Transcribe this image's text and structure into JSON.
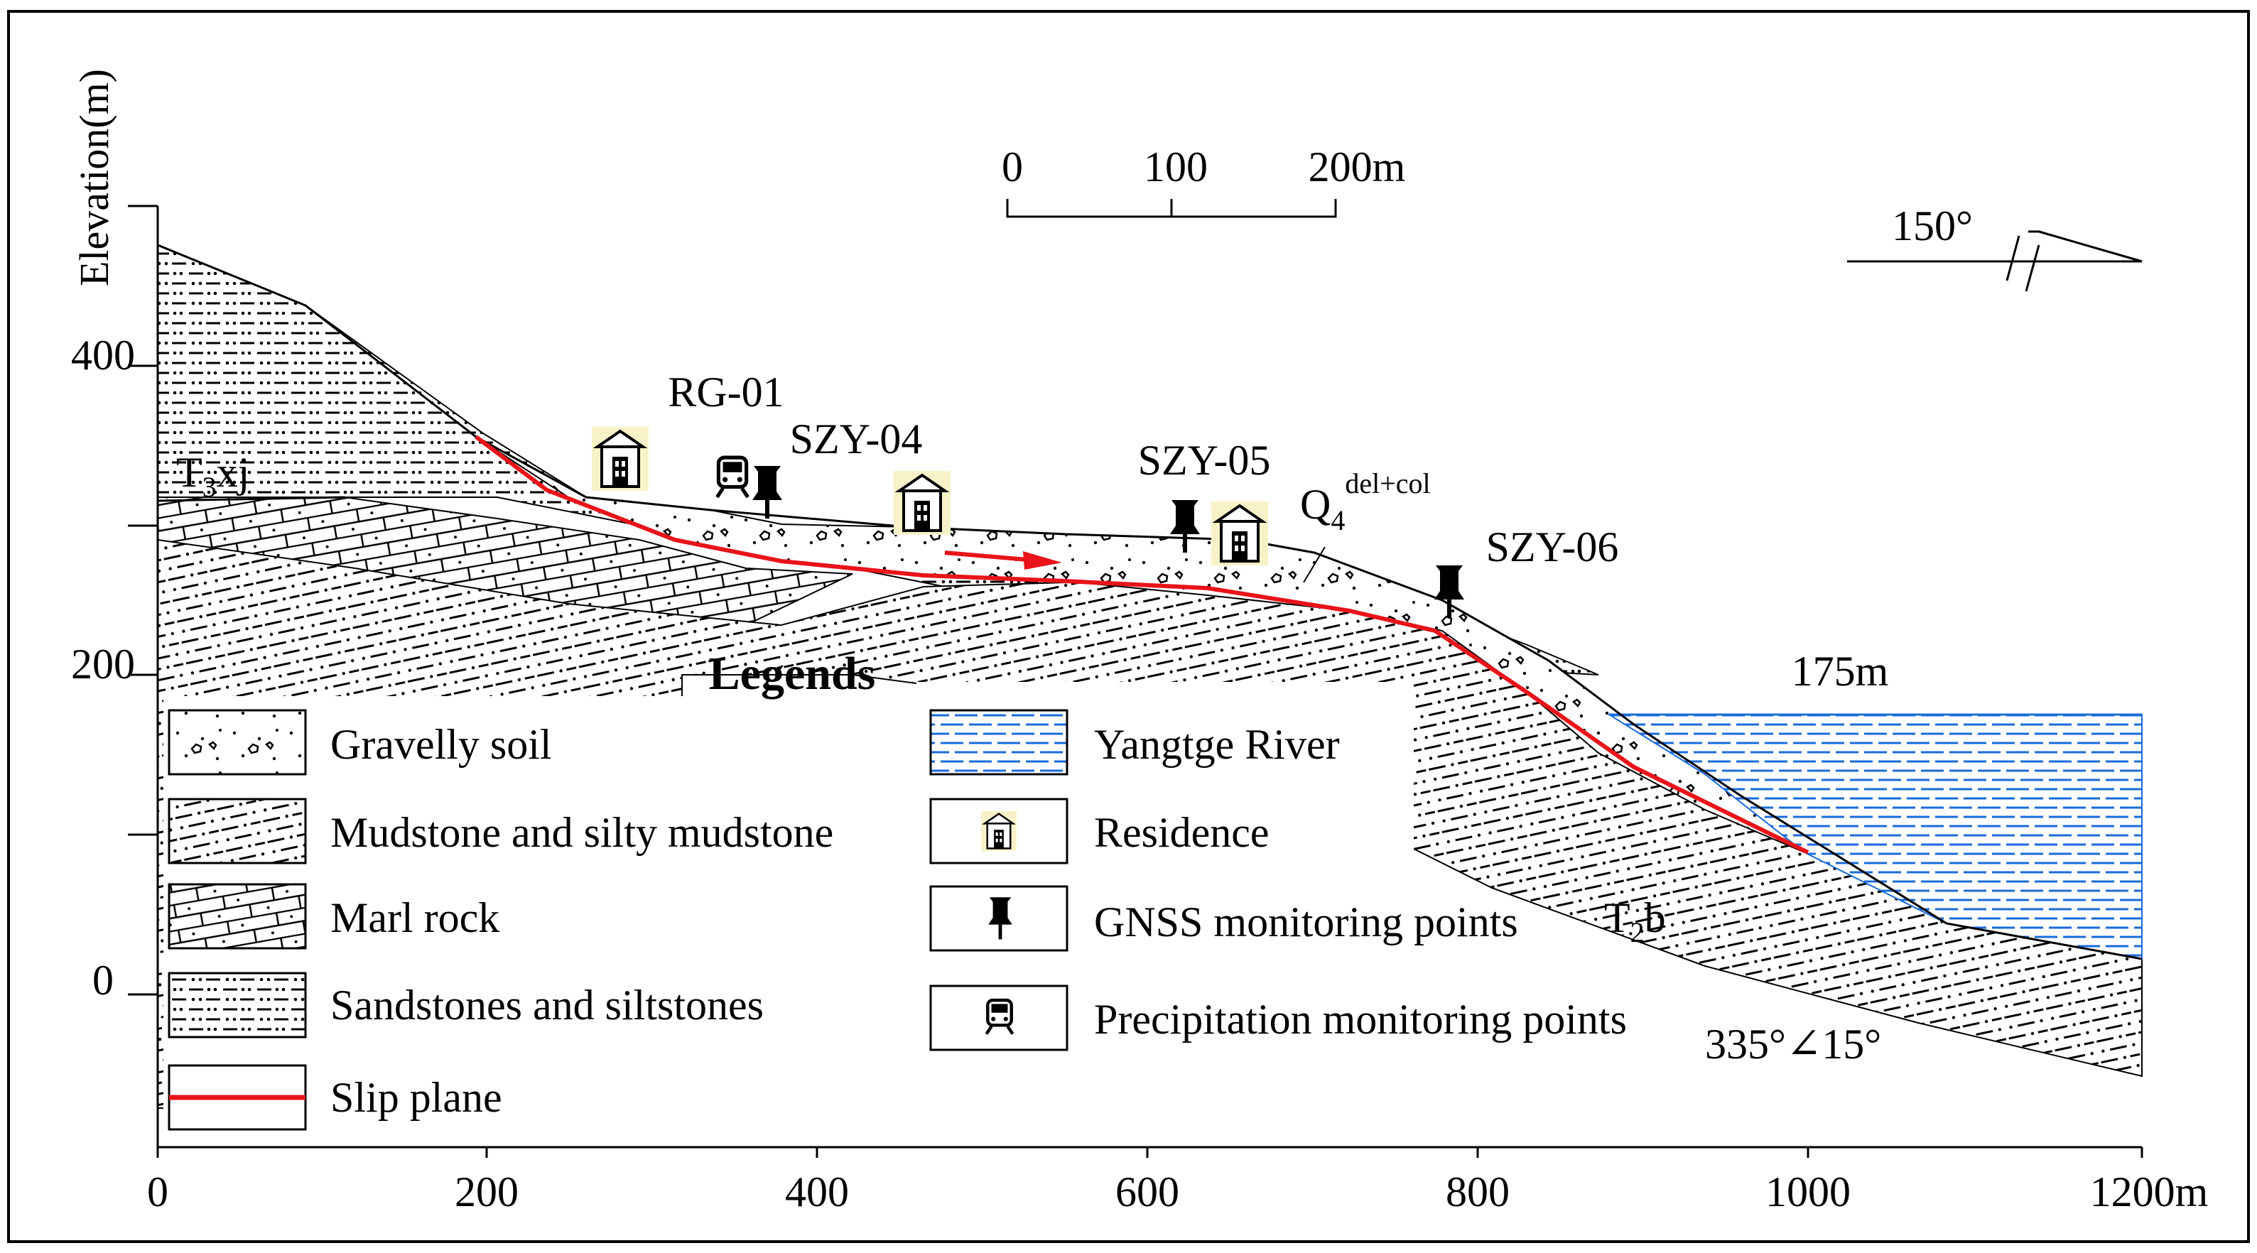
{
  "axes": {
    "y_title": "Elevation(m)",
    "x_ticks": [
      "0",
      "200",
      "400",
      "600",
      "800",
      "1000",
      "1200m"
    ],
    "y_ticks": [
      "400",
      "200",
      "0"
    ]
  },
  "scale_bar": {
    "labels": [
      "0",
      "100",
      "200m"
    ]
  },
  "orientation": {
    "azimuth": "150°"
  },
  "labels": {
    "formation_upper": "T",
    "formation_upper_sub": "3",
    "formation_upper_rest": "xj",
    "formation_lower": "T",
    "formation_lower_sub": "2",
    "formation_lower_rest": "b",
    "deposit": "Q",
    "deposit_sub": "4",
    "deposit_sup": "del+col",
    "water_level": "175m",
    "attitude": "335°∠15°"
  },
  "stations": {
    "rain_gauge": "RG-01",
    "gnss_1": "SZY-04",
    "gnss_2": "SZY-05",
    "gnss_3": "SZY-06"
  },
  "legend": {
    "title": "Legends",
    "items": [
      "Gravelly soil",
      "Mudstone and silty mudstone",
      "Marl rock",
      "Sandstones and siltstones",
      "Slip plane",
      "Yangtge River",
      "Residence",
      "GNSS monitoring points",
      "Precipitation monitoring points"
    ]
  },
  "colors": {
    "slip_plane": "#e8141a",
    "river": "#1a6bd9",
    "residence_bg": "#f7f2c8"
  }
}
